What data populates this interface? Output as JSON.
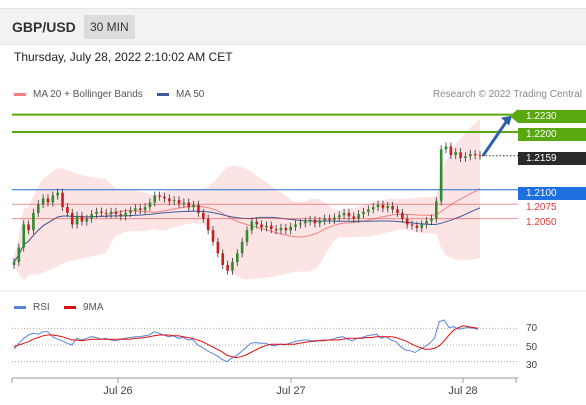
{
  "header": {
    "pair": "GBP/USD",
    "timeframe": "30 MIN"
  },
  "date_line": "Thursday, July 28, 2022 2:10:02 AM CET",
  "credit": "Research © 2022 Trading Central",
  "colors": {
    "green": "#59a810",
    "blue": "#1e6fe0",
    "red": "#e23a3a",
    "band": "#fbd9d9",
    "ma20": "#f08080",
    "ma50": "#3b5b9b",
    "rsi": "#5b82d6",
    "rsi_ma": "#e01010",
    "arrow": "#2f5fa8"
  },
  "chart_data": [
    {
      "type": "candlestick",
      "legend": [
        {
          "name": "MA 20 + Bollinger Bands",
          "color": "#f08080"
        },
        {
          "name": "MA 50",
          "color": "#3b5b9b"
        }
      ],
      "levels": {
        "resistance": [
          {
            "label": "1.2230",
            "value": 1.223
          },
          {
            "label": "1.2200",
            "value": 1.22
          }
        ],
        "last_price": {
          "label": "1.2159",
          "value": 1.2159
        },
        "support_blue": {
          "label": "1.2100",
          "value": 1.21
        },
        "support_red": [
          {
            "label": "1.2075",
            "value": 1.2075
          },
          {
            "label": "1.2050",
            "value": 1.205
          }
        ]
      },
      "forecast_arrow": {
        "from": 1.2159,
        "to": 1.223
      },
      "x_ticks": [
        "Jul 26",
        "Jul 27",
        "Jul 28"
      ],
      "ylim": [
        1.193,
        1.2245
      ],
      "points": [
        1.1975,
        1.2,
        1.204,
        1.203,
        1.206,
        1.2075,
        1.2085,
        1.2078,
        1.209,
        1.2095,
        1.207,
        1.206,
        1.204,
        1.2055,
        1.2045,
        1.205,
        1.2058,
        1.2062,
        1.206,
        1.2058,
        1.2062,
        1.2058,
        1.2054,
        1.206,
        1.2064,
        1.2068,
        1.2065,
        1.207,
        1.2078,
        1.209,
        1.2088,
        1.2085,
        1.208,
        1.2082,
        1.2076,
        1.2078,
        1.207,
        1.2074,
        1.206,
        1.205,
        1.203,
        1.201,
        1.199,
        1.197,
        1.196,
        1.1975,
        1.199,
        1.201,
        1.203,
        1.2045,
        1.204,
        1.2035,
        1.2038,
        1.2032,
        1.203,
        1.2034,
        1.203,
        1.2036,
        1.204,
        1.2042,
        1.2045,
        1.2048,
        1.2042,
        1.2046,
        1.205,
        1.2048,
        1.2052,
        1.2056,
        1.206,
        1.2054,
        1.205,
        1.2058,
        1.2062,
        1.2066,
        1.207,
        1.2074,
        1.2068,
        1.2072,
        1.2066,
        1.206,
        1.205,
        1.204,
        1.2038,
        1.2034,
        1.204,
        1.2046,
        1.205,
        1.208,
        1.217,
        1.2175,
        1.216,
        1.2165,
        1.2155,
        1.2158,
        1.2162,
        1.216,
        1.2159
      ]
    },
    {
      "type": "line",
      "legend": [
        {
          "name": "RSI",
          "color": "#5b82d6"
        },
        {
          "name": "9MA",
          "color": "#e01010"
        }
      ],
      "y_ticks": [
        70,
        50,
        30
      ],
      "ylim": [
        20,
        80
      ],
      "series": [
        {
          "values": [
            45,
            52,
            58,
            62,
            64,
            63,
            66,
            66,
            60,
            57,
            55,
            52,
            50,
            58,
            56,
            58,
            60,
            59,
            57,
            58,
            56,
            55,
            57,
            58,
            59,
            60,
            60,
            61,
            62,
            66,
            64,
            62,
            60,
            61,
            58,
            59,
            56,
            57,
            50,
            47,
            43,
            40,
            37,
            33,
            30,
            34,
            37,
            42,
            47,
            52,
            53,
            52,
            52,
            50,
            49,
            51,
            50,
            52,
            54,
            55,
            56,
            56,
            54,
            55,
            56,
            56,
            57,
            59,
            60,
            57,
            55,
            58,
            59,
            61,
            62,
            63,
            58,
            60,
            56,
            54,
            48,
            44,
            43,
            41,
            45,
            48,
            52,
            58,
            78,
            80,
            71,
            72,
            69,
            70,
            71,
            70,
            69
          ]
        },
        {
          "values": [
            48,
            50,
            52,
            54,
            57,
            59,
            61,
            62,
            62,
            61,
            60,
            58,
            56,
            56,
            55,
            56,
            57,
            57,
            57,
            57,
            57,
            57,
            57,
            57,
            57,
            58,
            58,
            59,
            60,
            61,
            62,
            62,
            62,
            61,
            61,
            60,
            59,
            58,
            56,
            54,
            51,
            48,
            45,
            42,
            38,
            36,
            35,
            36,
            38,
            41,
            44,
            47,
            49,
            51,
            51,
            51,
            51,
            51,
            51,
            52,
            53,
            54,
            55,
            55,
            55,
            56,
            56,
            56,
            57,
            58,
            58,
            58,
            58,
            59,
            59,
            60,
            60,
            60,
            60,
            59,
            57,
            55,
            52,
            49,
            47,
            45,
            45,
            46,
            49,
            55,
            62,
            68,
            71,
            73,
            72,
            71,
            70
          ]
        }
      ]
    }
  ]
}
